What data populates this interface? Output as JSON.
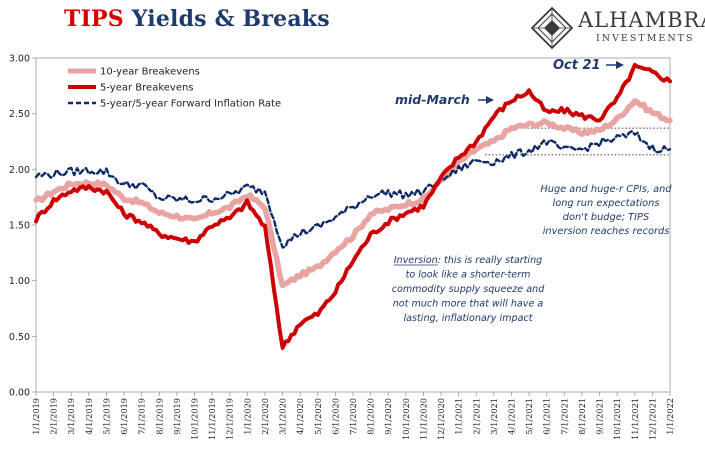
{
  "title": {
    "accent": "TIPS",
    "rest": " Yields & Breaks"
  },
  "logo": {
    "name": "ALHAMBRA",
    "subtitle": "INVESTMENTS"
  },
  "chart_data": {
    "type": "line",
    "ylim": [
      0.0,
      3.0
    ],
    "y_ticks": [
      "0.00",
      "0.50",
      "1.00",
      "1.50",
      "2.00",
      "2.50",
      "3.00"
    ],
    "x_ticks": [
      "1/1/2019",
      "2/1/2019",
      "3/1/2019",
      "4/1/2019",
      "5/1/2019",
      "6/1/2019",
      "7/1/2019",
      "8/1/2019",
      "9/1/2019",
      "10/1/2019",
      "11/1/2019",
      "12/1/2019",
      "1/1/2020",
      "2/1/2020",
      "3/1/2020",
      "4/1/2020",
      "5/1/2020",
      "6/1/2020",
      "7/1/2020",
      "8/1/2020",
      "9/1/2020",
      "10/1/2020",
      "11/1/2020",
      "12/1/2020",
      "1/1/2021",
      "2/1/2021",
      "3/1/2021",
      "4/1/2021",
      "5/1/2021",
      "6/1/2021",
      "7/1/2021",
      "8/1/2021",
      "9/1/2021",
      "10/1/2021",
      "11/1/2021",
      "12/1/2021",
      "1/1/2022"
    ],
    "grid": false,
    "legend_position": "top-left",
    "series": [
      {
        "name": "10-year Breakevens",
        "color": "#e8a3a3",
        "style": "solid",
        "values": [
          1.71,
          1.8,
          1.87,
          1.88,
          1.86,
          1.74,
          1.7,
          1.61,
          1.58,
          1.54,
          1.61,
          1.66,
          1.77,
          1.66,
          0.95,
          1.05,
          1.12,
          1.27,
          1.4,
          1.6,
          1.64,
          1.69,
          1.73,
          1.9,
          2.06,
          2.18,
          2.25,
          2.37,
          2.4,
          2.42,
          2.37,
          2.33,
          2.35,
          2.45,
          2.62,
          2.51,
          2.44
        ]
      },
      {
        "name": "5-year Breakevens",
        "color": "#cc0000",
        "style": "solid",
        "values": [
          1.55,
          1.72,
          1.81,
          1.84,
          1.8,
          1.6,
          1.53,
          1.42,
          1.38,
          1.35,
          1.5,
          1.56,
          1.7,
          1.48,
          0.4,
          0.62,
          0.7,
          0.9,
          1.18,
          1.41,
          1.53,
          1.61,
          1.67,
          1.92,
          2.11,
          2.25,
          2.48,
          2.62,
          2.7,
          2.51,
          2.53,
          2.48,
          2.45,
          2.63,
          2.92,
          2.87,
          2.79
        ]
      },
      {
        "name": "5-year/5-year Forward Inflation Rate",
        "color": "#0d2a66",
        "style": "dashed",
        "values": [
          1.94,
          1.96,
          1.98,
          1.99,
          1.98,
          1.86,
          1.86,
          1.74,
          1.73,
          1.72,
          1.74,
          1.77,
          1.84,
          1.8,
          1.32,
          1.43,
          1.48,
          1.57,
          1.66,
          1.77,
          1.79,
          1.77,
          1.8,
          1.9,
          2.0,
          2.08,
          2.07,
          2.12,
          2.17,
          2.25,
          2.17,
          2.18,
          2.24,
          2.28,
          2.32,
          2.19,
          2.18
        ]
      }
    ],
    "reference_lines": [
      {
        "y": 2.37,
        "x_from_index": 27.5,
        "color": "#000000",
        "style": "dotted"
      },
      {
        "y": 2.13,
        "x_from_index": 25.5,
        "color": "#000000",
        "style": "dotted"
      }
    ],
    "annotations": [
      {
        "text": "Oct 21",
        "color": "#1f3a6e",
        "bold": true,
        "italic": true
      },
      {
        "text": "mid-March",
        "color": "#1f3a6e",
        "bold": true,
        "italic": true
      },
      {
        "lines": [
          "Huge and huge-r CPIs, and",
          "long run expectations",
          "don't budge; TIPS",
          "inversion reaches records"
        ],
        "color": "#1f3a6e",
        "italic": true
      },
      {
        "lines": [
          "Inversion: this is really starting",
          "to look like a shorter-term",
          "commodity supply squeeze and",
          "not much more that will have a",
          "lasting, inflationary impact"
        ],
        "underline_word": "Inversion",
        "color": "#1f3a6e",
        "italic": true
      }
    ]
  }
}
